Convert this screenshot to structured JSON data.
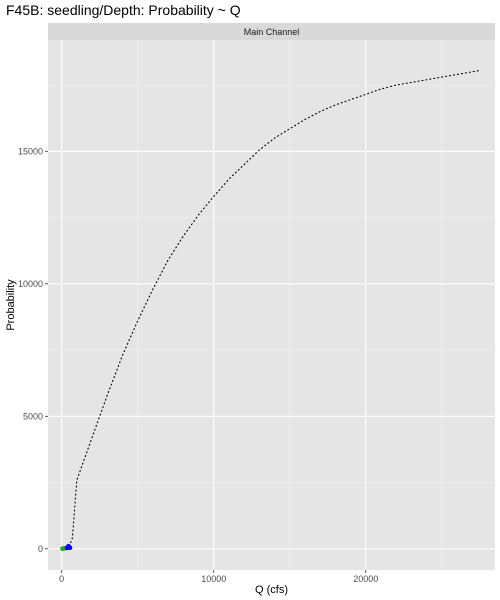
{
  "chart_data": {
    "type": "line",
    "title": "F45B: seedling/Depth: Probability ~ Q",
    "facet_label": "Main Channel",
    "xlabel": "Q (cfs)",
    "ylabel": "Probability",
    "xlim": [
      -900,
      28500
    ],
    "ylim": [
      -800,
      19200
    ],
    "x_ticks": [
      0,
      10000,
      20000
    ],
    "x_tick_labels": [
      "0",
      "10000",
      "20000"
    ],
    "y_ticks": [
      0,
      5000,
      10000,
      15000
    ],
    "y_tick_labels": [
      "0",
      "5000",
      "10000",
      "15000"
    ],
    "grid": true,
    "legend": "none",
    "series": [
      {
        "style": "dotted",
        "color": "#000000",
        "x": [
          0,
          300,
          500,
          700,
          800,
          900,
          1000,
          1500,
          2000,
          3000,
          4000,
          5000,
          6000,
          7000,
          8000,
          9000,
          10000,
          11000,
          12000,
          13000,
          14000,
          15000,
          16000,
          17000,
          18000,
          19000,
          20000,
          21000,
          22000,
          23000,
          24000,
          25000,
          26000,
          27000,
          27500
        ],
        "y": [
          0,
          30,
          100,
          400,
          1100,
          1900,
          2600,
          3400,
          4200,
          5800,
          7300,
          8600,
          9800,
          10900,
          11800,
          12600,
          13300,
          13950,
          14500,
          15050,
          15500,
          15850,
          16200,
          16500,
          16750,
          16950,
          17150,
          17350,
          17500,
          17600,
          17700,
          17800,
          17900,
          18000,
          18050
        ]
      }
    ],
    "points": [
      {
        "x": 50,
        "y": 0,
        "color": "#22aa22"
      },
      {
        "x": 100,
        "y": 10,
        "color": "#22aa22"
      },
      {
        "x": 200,
        "y": 20,
        "color": "#22aa22"
      },
      {
        "x": 350,
        "y": 30,
        "color": "#0000ff"
      },
      {
        "x": 400,
        "y": 60,
        "color": "#0000ff"
      },
      {
        "x": 450,
        "y": 100,
        "color": "#0000ff"
      },
      {
        "x": 500,
        "y": 70,
        "color": "#0000ff"
      },
      {
        "x": 550,
        "y": 40,
        "color": "#0000ff"
      }
    ],
    "colors": {
      "panel_background": "#e5e5e5",
      "strip_background": "#d9d9d9",
      "grid_major": "#ffffff",
      "grid_minor": "#f2f2f2"
    }
  }
}
